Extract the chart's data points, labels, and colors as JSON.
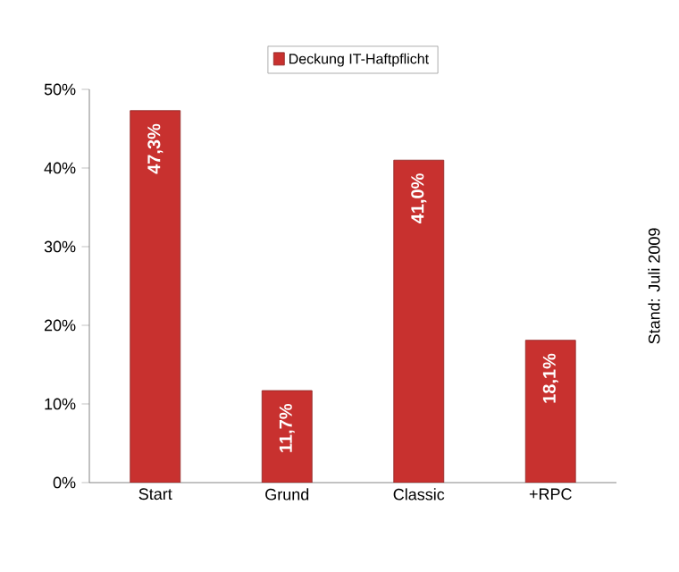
{
  "chart_data": {
    "type": "bar",
    "categories": [
      "Start",
      "Grund",
      "Classic",
      "+RPC"
    ],
    "series": [
      {
        "name": "Deckung IT-Haftpflicht",
        "color": "#c8312f",
        "values": [
          47.3,
          11.7,
          41.0,
          18.1
        ],
        "value_labels": [
          "47,3%",
          "11,7%",
          "41,0%",
          "18,1%"
        ]
      }
    ],
    "ylim": [
      0,
      50
    ],
    "yticks": [
      {
        "value": 0,
        "label": "0%"
      },
      {
        "value": 10,
        "label": "10%"
      },
      {
        "value": 20,
        "label": "20%"
      },
      {
        "value": 30,
        "label": "30%"
      },
      {
        "value": 40,
        "label": "40%"
      },
      {
        "value": 50,
        "label": "50%"
      }
    ],
    "legend": "top",
    "annotations": [
      "Stand: Juli 2009"
    ]
  }
}
